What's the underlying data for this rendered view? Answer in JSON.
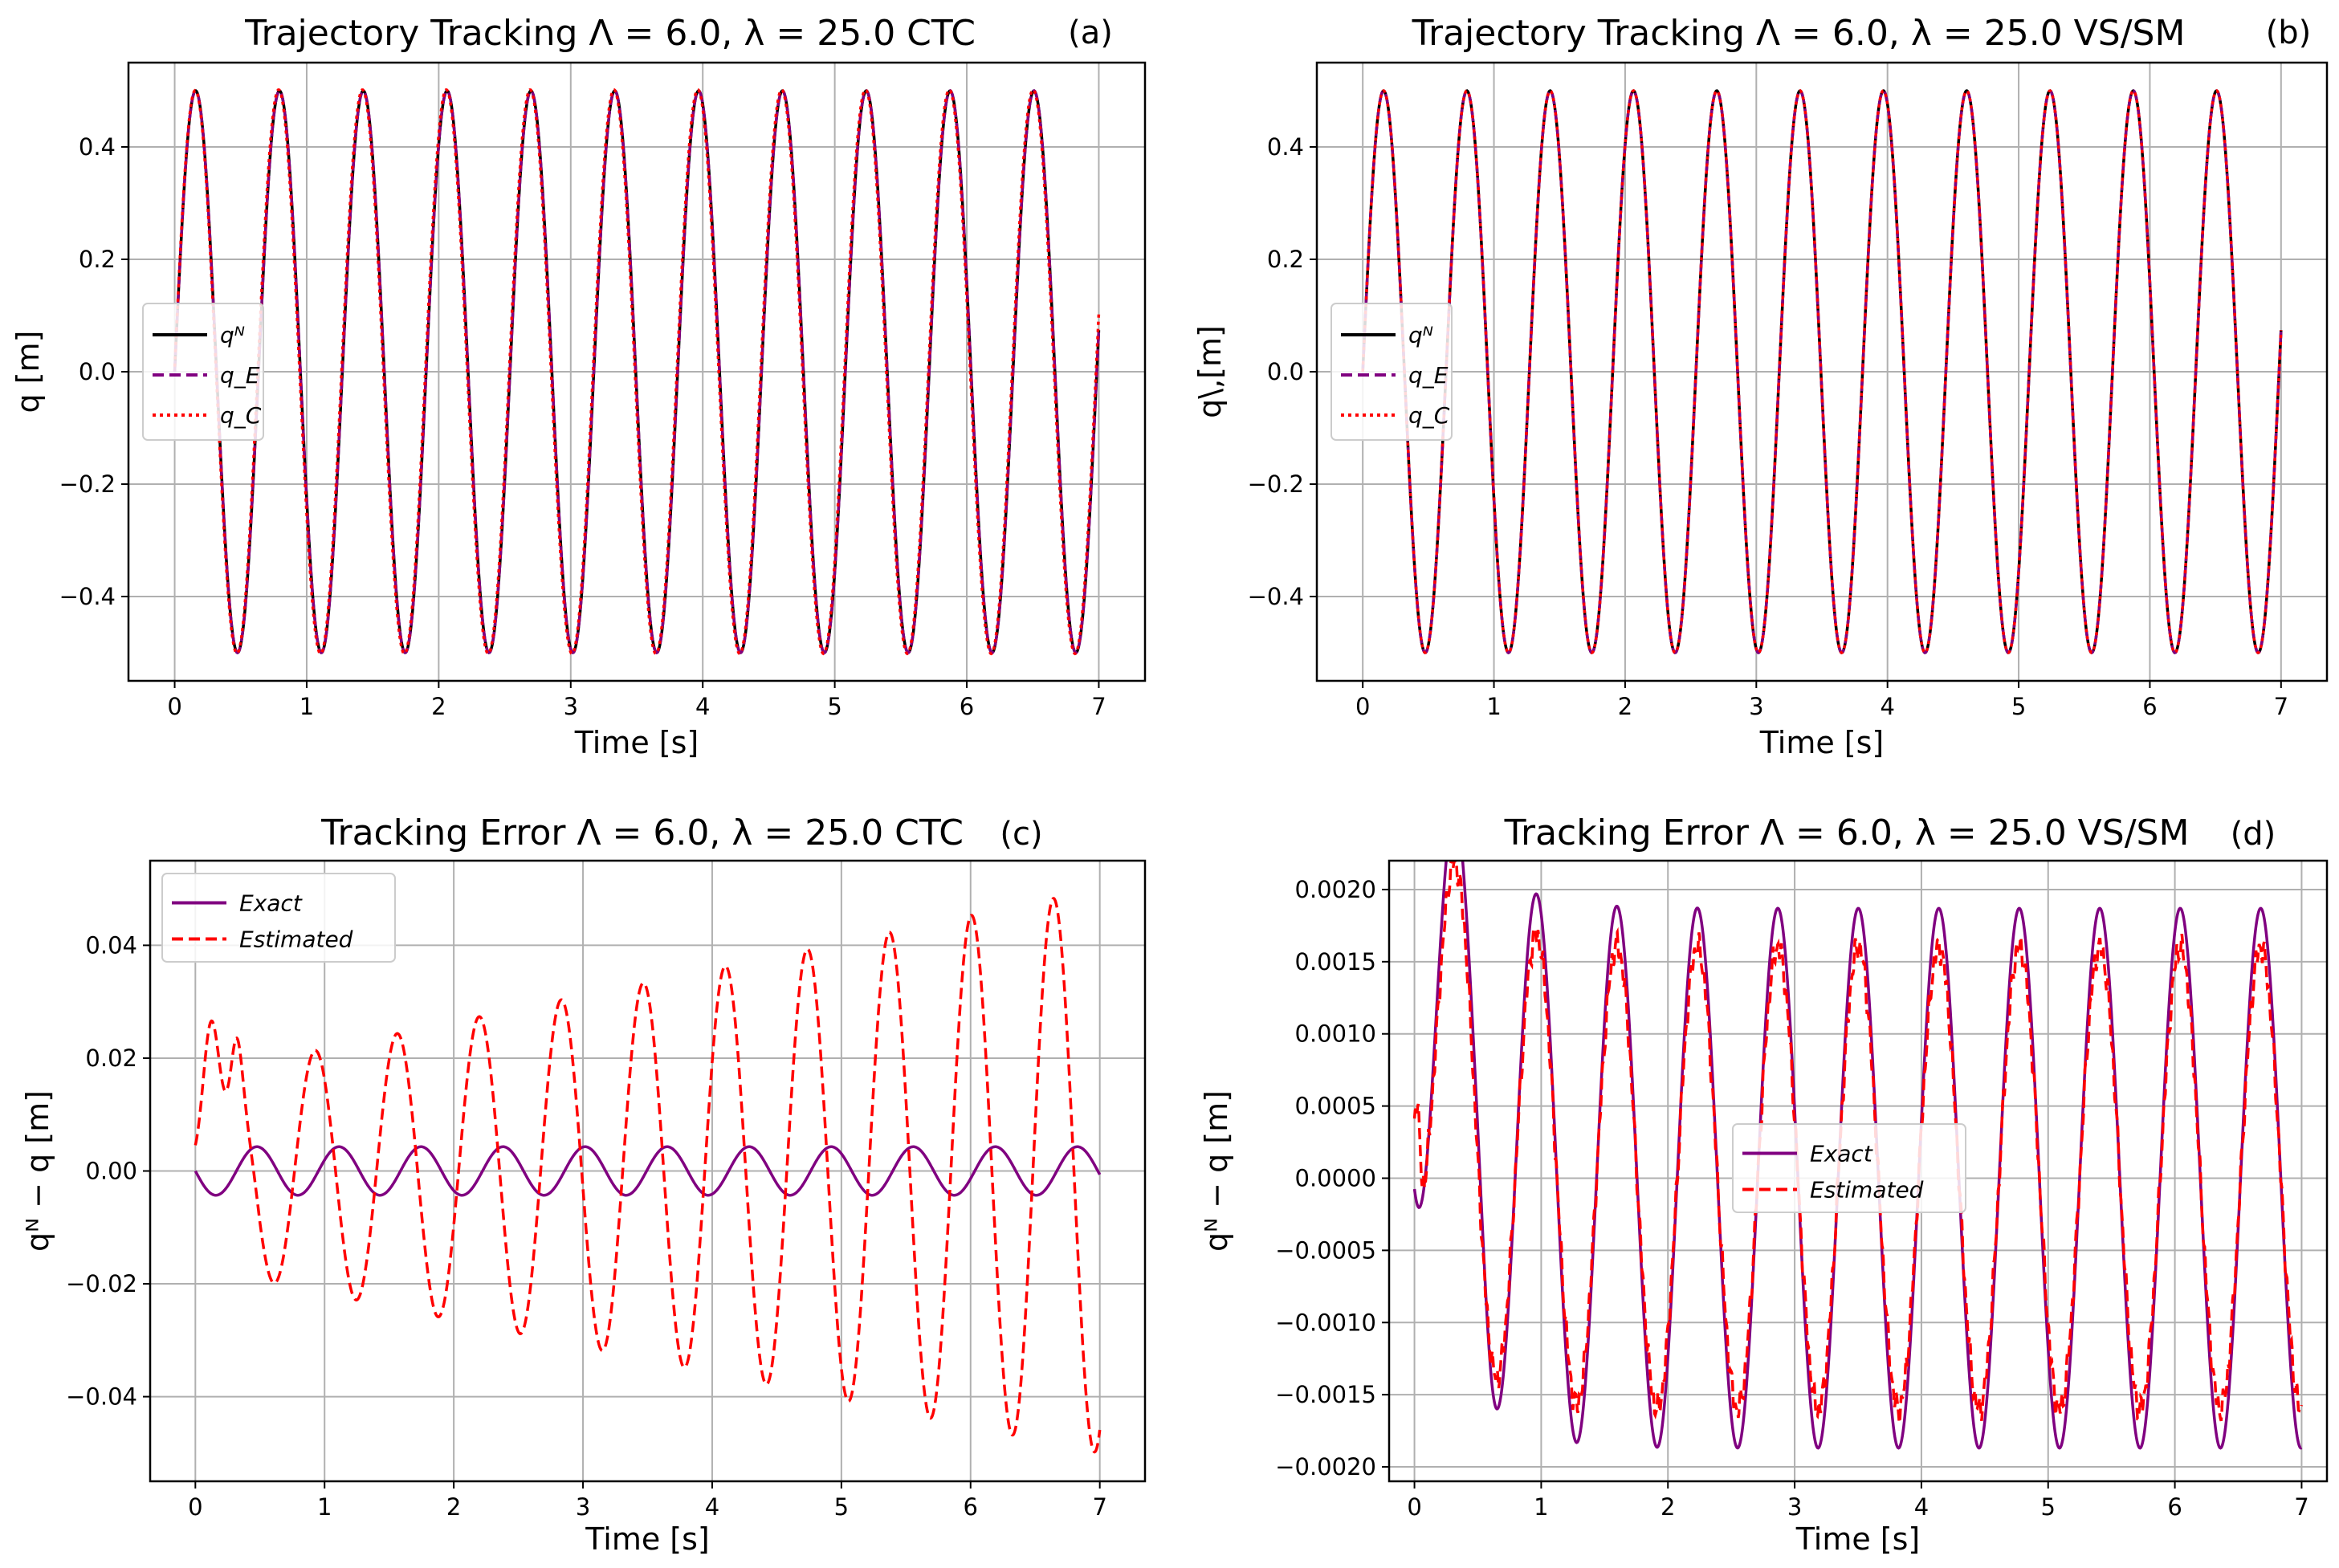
{
  "figure": {
    "panels": [
      {
        "tag": "(a)",
        "title": "Trajectory Tracking Λ = 6.0, λ = 25.0 CTC",
        "xlabel": "Time [s]",
        "ylabel": "q [m]"
      },
      {
        "tag": "(b)",
        "title": "Trajectory Tracking Λ = 6.0, λ = 25.0 VS/SM",
        "xlabel": "Time [s]",
        "ylabel": "q\\,[m]"
      },
      {
        "tag": "(c)",
        "title": "Tracking Error Λ = 6.0, λ = 25.0 CTC",
        "xlabel": "Time [s]",
        "ylabel": "qᴺ − q [m]"
      },
      {
        "tag": "(d)",
        "title": "Tracking Error Λ = 6.0, λ = 25.0 VS/SM",
        "xlabel": "Time [s]",
        "ylabel": "qᴺ − q [m]"
      }
    ]
  },
  "chart_data": [
    {
      "type": "line",
      "title": "Trajectory Tracking Λ = 6.0, λ = 25.0 CTC",
      "tag": "(a)",
      "xlabel": "Time [s]",
      "ylabel": "q [m]",
      "xlim": [
        -0.35,
        7.35
      ],
      "ylim": [
        -0.55,
        0.55
      ],
      "xticks": [
        0,
        1,
        2,
        3,
        4,
        5,
        6,
        7
      ],
      "yticks": [
        -0.4,
        -0.2,
        0.0,
        0.2,
        0.4
      ],
      "ytick_labels": [
        "−0.4",
        "−0.2",
        "0.0",
        "0.2",
        "0.4"
      ],
      "grid": true,
      "legend_position": "center-left",
      "series": [
        {
          "name": "qᴺ",
          "description": "0.5·sin(2π·t/0.635)",
          "amplitude": 0.5,
          "period": 0.635,
          "color": "#000000",
          "style": "solid"
        },
        {
          "name": "q_E",
          "description": "0.5·sin(2π·t/0.635)",
          "amplitude": 0.5,
          "period": 0.635,
          "color": "#800080",
          "style": "dashed"
        },
        {
          "name": "q_C",
          "description": "0.5·sin(2π·t/0.635) − error",
          "amplitude": 0.5,
          "period": 0.635,
          "color": "#ff0000",
          "style": "dotted"
        }
      ]
    },
    {
      "type": "line",
      "title": "Trajectory Tracking Λ = 6.0, λ = 25.0 VS/SM",
      "tag": "(b)",
      "xlabel": "Time [s]",
      "ylabel": "q\\,[m]",
      "xlim": [
        -0.35,
        7.35
      ],
      "ylim": [
        -0.55,
        0.55
      ],
      "xticks": [
        0,
        1,
        2,
        3,
        4,
        5,
        6,
        7
      ],
      "yticks": [
        -0.4,
        -0.2,
        0.0,
        0.2,
        0.4
      ],
      "ytick_labels": [
        "−0.4",
        "−0.2",
        "0.0",
        "0.2",
        "0.4"
      ],
      "grid": true,
      "legend_position": "center-left",
      "series": [
        {
          "name": "qᴺ",
          "amplitude": 0.5,
          "period": 0.635,
          "color": "#000000",
          "style": "solid"
        },
        {
          "name": "q_E",
          "amplitude": 0.5,
          "period": 0.635,
          "color": "#800080",
          "style": "dashed"
        },
        {
          "name": "q_C",
          "amplitude": 0.5,
          "period": 0.635,
          "color": "#ff0000",
          "style": "dotted"
        }
      ]
    },
    {
      "type": "line",
      "title": "Tracking Error Λ = 6.0, λ = 25.0 CTC",
      "tag": "(c)",
      "xlabel": "Time [s]",
      "ylabel": "qᴺ − q [m]",
      "xlim": [
        -0.35,
        7.35
      ],
      "ylim": [
        -0.055,
        0.055
      ],
      "xticks": [
        0,
        1,
        2,
        3,
        4,
        5,
        6,
        7
      ],
      "yticks": [
        -0.04,
        -0.02,
        0.0,
        0.02,
        0.04
      ],
      "ytick_labels": [
        "−0.04",
        "−0.02",
        "0.00",
        "0.02",
        "0.04"
      ],
      "grid": true,
      "legend_position": "top-left",
      "series": [
        {
          "name": "Exact",
          "amplitude": 0.0043,
          "period": 0.635,
          "color": "#800080",
          "style": "solid"
        },
        {
          "name": "Estimated",
          "amplitude_start": 0.017,
          "amplitude_end": 0.05,
          "period": 0.635,
          "initial_bump": 0.027,
          "color": "#ff0000",
          "style": "dashed"
        }
      ]
    },
    {
      "type": "line",
      "title": "Tracking Error Λ = 6.0, λ = 25.0 VS/SM",
      "tag": "(d)",
      "xlabel": "Time [s]",
      "ylabel": "qᴺ − q [m]",
      "xlim": [
        -0.2,
        7.2
      ],
      "ylim": [
        -0.0021,
        0.0022
      ],
      "xticks": [
        0,
        1,
        2,
        3,
        4,
        5,
        6,
        7
      ],
      "yticks": [
        -0.002,
        -0.0015,
        -0.001,
        -0.0005,
        0.0,
        0.0005,
        0.001,
        0.0015,
        0.002
      ],
      "ytick_labels": [
        "−0.0020",
        "−0.0015",
        "−0.0010",
        "−0.0005",
        "0.0000",
        "0.0005",
        "0.0010",
        "0.0015",
        "0.0020"
      ],
      "grid": true,
      "legend_position": "center",
      "series": [
        {
          "name": "Exact",
          "amplitude": 0.00187,
          "first_peak": 0.00208,
          "period": 0.635,
          "color": "#800080",
          "style": "solid"
        },
        {
          "name": "Estimated",
          "amplitude": 0.0016,
          "initial_spike": 0.0007,
          "period": 0.635,
          "color": "#ff0000",
          "style": "dashed"
        }
      ]
    }
  ]
}
